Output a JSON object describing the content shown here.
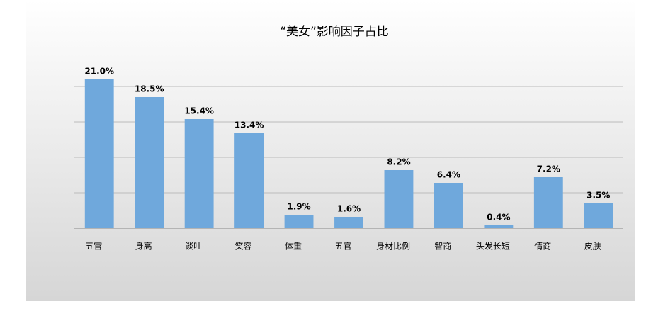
{
  "chart_data": {
    "type": "bar",
    "title": "“美女”影响因子占比",
    "categories": [
      "五官",
      "身高",
      "谈吐",
      "笑容",
      "体重",
      "五官",
      "身材比例",
      "智商",
      "头发长短",
      "情商",
      "皮肤"
    ],
    "values": [
      21.0,
      18.5,
      15.4,
      13.4,
      1.9,
      1.6,
      8.2,
      6.4,
      0.4,
      7.2,
      3.5
    ],
    "value_labels": [
      "21.0%",
      "18.5%",
      "15.4%",
      "13.4%",
      "1.9%",
      "1.6%",
      "8.2%",
      "6.4%",
      "0.4%",
      "7.2%",
      "3.5%"
    ],
    "color": "#6fa8dc",
    "ylim": [
      0,
      25
    ],
    "yticks": [
      0,
      5,
      10,
      15,
      20
    ],
    "grid": true
  }
}
